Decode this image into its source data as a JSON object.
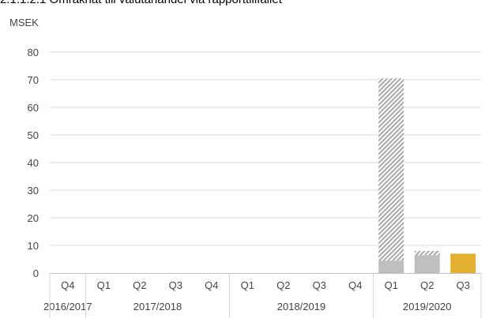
{
  "header": {
    "title": "2.1.1.2.1 Omräknat till valutahandel via rapporttillfället"
  },
  "chart_data": {
    "type": "bar",
    "title": "2.1.1.2.1 Omräknat till valutahandel via rapporttillfället",
    "ylabel": "MSEK",
    "xlabel": "",
    "ylim": [
      0,
      80
    ],
    "yticks": [
      0,
      10,
      20,
      30,
      40,
      50,
      60,
      70,
      80
    ],
    "grid": true,
    "legend": "none",
    "categories": [
      "Q4",
      "Q1",
      "Q2",
      "Q3",
      "Q4",
      "Q1",
      "Q2",
      "Q3",
      "Q4",
      "Q1",
      "Q2",
      "Q3"
    ],
    "years": [
      {
        "label": "2016/2017",
        "span": 1
      },
      {
        "label": "2017/2018",
        "span": 4
      },
      {
        "label": "2018/2019",
        "span": 4
      },
      {
        "label": "2019/2020",
        "span": 3
      }
    ],
    "series": [
      {
        "values": [
          0,
          0,
          0,
          0,
          0,
          0,
          0,
          0,
          0,
          4.5,
          6.5,
          0
        ],
        "color": "#bfbfbf",
        "pattern": "solid"
      },
      {
        "values": [
          0,
          0,
          0,
          0,
          0,
          0,
          0,
          0,
          0,
          66,
          1.5,
          0
        ],
        "color": "#bfbfbf",
        "pattern": "hatched"
      },
      {
        "values": [
          0,
          0,
          0,
          0,
          0,
          0,
          0,
          0,
          0,
          0,
          0,
          7
        ],
        "color": "#e3b032",
        "pattern": "solid"
      }
    ]
  }
}
